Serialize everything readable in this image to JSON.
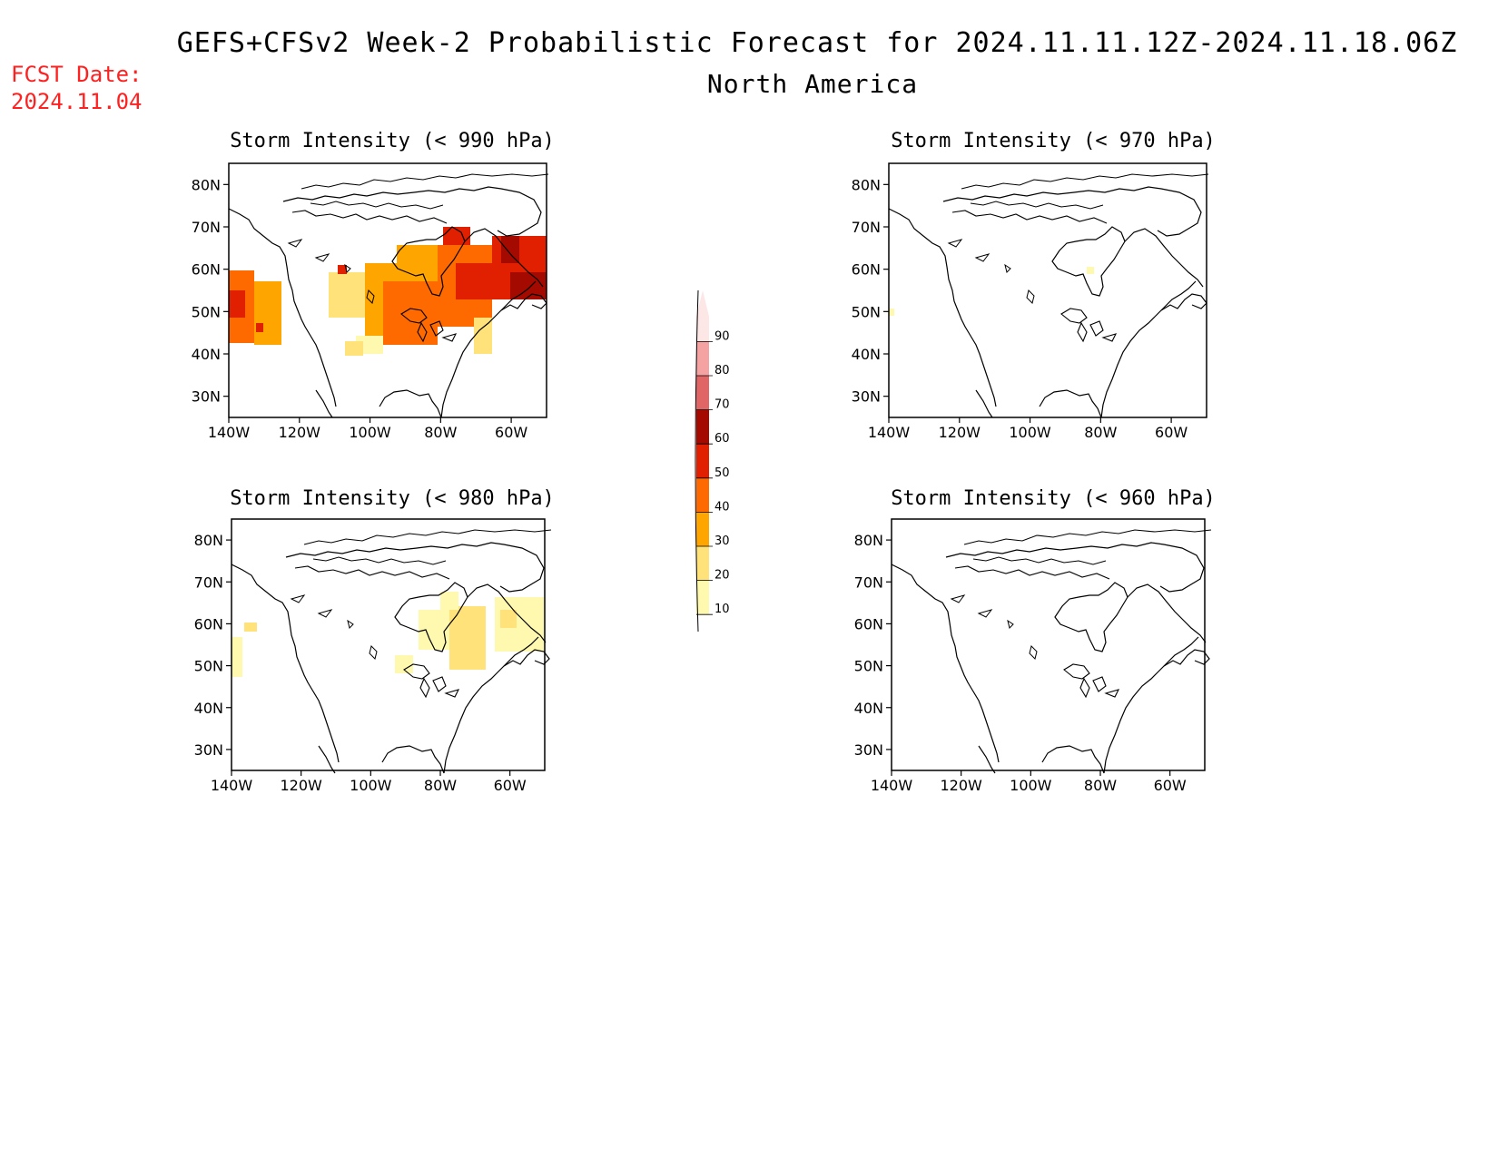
{
  "header": {
    "title": "GEFS+CFSv2 Week-2 Probabilistic Forecast for 2024.11.11.12Z-2024.11.18.06Z",
    "subtitle": "North America",
    "fcst_label": "FCST Date:",
    "fcst_date": "2024.11.04"
  },
  "axes": {
    "lat_ticks": [
      "80N",
      "70N",
      "60N",
      "50N",
      "40N",
      "30N"
    ],
    "lon_ticks": [
      "140W",
      "120W",
      "100W",
      "80W",
      "60W"
    ],
    "lat_range": [
      25,
      85
    ],
    "lon_range": [
      -140,
      -50
    ]
  },
  "panels": [
    {
      "id": "p990",
      "title": "Storm Intensity (< 990 hPa)",
      "coverage": "widespread 20-60% over Canada and Pacific coast"
    },
    {
      "id": "p970",
      "title": "Storm Intensity (< 970 hPa)",
      "coverage": "minimal"
    },
    {
      "id": "p980",
      "title": "Storm Intensity (< 980 hPa)",
      "coverage": "10-30% over eastern Canada"
    },
    {
      "id": "p960",
      "title": "Storm Intensity (< 960 hPa)",
      "coverage": "none"
    }
  ],
  "colorbar": {
    "levels": [
      "10",
      "20",
      "30",
      "40",
      "50",
      "60",
      "70",
      "80",
      "90"
    ],
    "colors": [
      "#fff9b0",
      "#ffe37a",
      "#ffa500",
      "#ff6a00",
      "#e02000",
      "#a50a00",
      "#e06666",
      "#f4a2a2",
      "#fde6e6"
    ]
  }
}
